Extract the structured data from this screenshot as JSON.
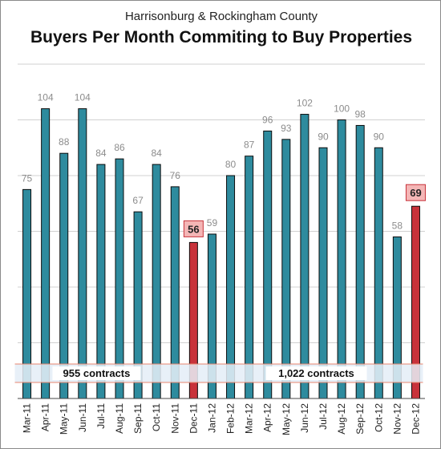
{
  "colors": {
    "bar": "#2e8b9e",
    "bar_outline": "#0b0b0b",
    "highlight": "#c8323a",
    "highlight_label_bg": "#f4b6b6",
    "value_label": "#8c8c8c",
    "grid": "#d0d0d0",
    "annotation_line": "#e8856e",
    "annotation_bg": "#e8f0f8"
  },
  "chart_data": {
    "type": "bar",
    "subtitle": "Harrisonburg & Rockingham County",
    "title": "Buyers Per Month Commiting to Buy Properties",
    "xlabel": "",
    "ylabel": "",
    "ylim": [
      0,
      120
    ],
    "grid": true,
    "categories": [
      "Mar-11",
      "Apr-11",
      "May-11",
      "Jun-11",
      "Jul-11",
      "Aug-11",
      "Sep-11",
      "Oct-11",
      "Nov-11",
      "Dec-11",
      "Jan-12",
      "Feb-12",
      "Mar-12",
      "Apr-12",
      "May-12",
      "Jun-12",
      "Jul-12",
      "Aug-12",
      "Sep-12",
      "Oct-12",
      "Nov-12",
      "Dec-12"
    ],
    "values": [
      75,
      104,
      88,
      104,
      84,
      86,
      67,
      84,
      76,
      56,
      59,
      80,
      87,
      96,
      93,
      102,
      90,
      100,
      98,
      90,
      58,
      69
    ],
    "highlighted": [
      "Dec-11",
      "Dec-12"
    ],
    "annotations": [
      {
        "text": "955 contracts",
        "from": "Mar-11",
        "to": "Dec-11"
      },
      {
        "text": "1,022 contracts",
        "from": "Jan-12",
        "to": "Dec-12"
      }
    ]
  }
}
